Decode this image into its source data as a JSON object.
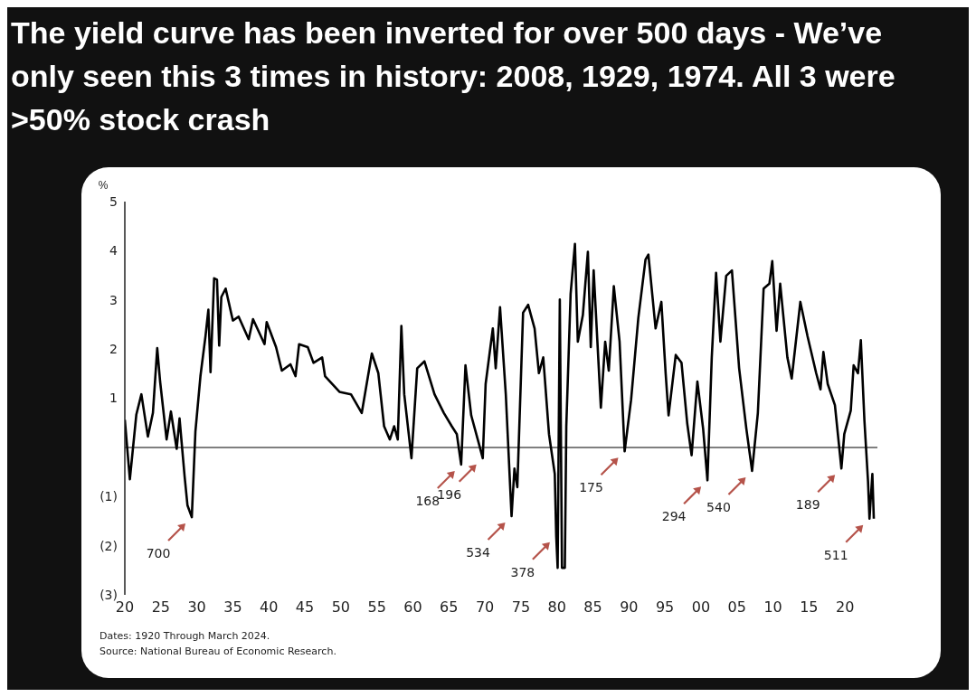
{
  "chart_data": {
    "type": "line",
    "title": "The yield curve has been inverted for over 500 days - We’ve only seen this 3 times in history: 2008, 1929, 1974. All 3 were >50% stock crash",
    "ylabel": "%",
    "xlim": [
      1920,
      2024.5
    ],
    "xticks": [
      {
        "value": 1920,
        "label": "20"
      },
      {
        "value": 1925,
        "label": "25"
      },
      {
        "value": 1930,
        "label": "30"
      },
      {
        "value": 1935,
        "label": "35"
      },
      {
        "value": 1940,
        "label": "40"
      },
      {
        "value": 1945,
        "label": "45"
      },
      {
        "value": 1950,
        "label": "50"
      },
      {
        "value": 1955,
        "label": "55"
      },
      {
        "value": 1960,
        "label": "60"
      },
      {
        "value": 1965,
        "label": "65"
      },
      {
        "value": 1970,
        "label": "70"
      },
      {
        "value": 1975,
        "label": "75"
      },
      {
        "value": 1980,
        "label": "80"
      },
      {
        "value": 1985,
        "label": "85"
      },
      {
        "value": 1990,
        "label": "90"
      },
      {
        "value": 1995,
        "label": "95"
      },
      {
        "value": 2000,
        "label": "00"
      },
      {
        "value": 2005,
        "label": "05"
      },
      {
        "value": 2010,
        "label": "10"
      },
      {
        "value": 2015,
        "label": "15"
      },
      {
        "value": 2020,
        "label": "20"
      }
    ],
    "ylim": [
      -3,
      5
    ],
    "yticks": [
      {
        "value": -3,
        "label": "(3)"
      },
      {
        "value": -2,
        "label": "(2)"
      },
      {
        "value": -1,
        "label": "(1)"
      },
      1,
      2,
      3,
      4,
      5
    ],
    "grid": false,
    "legend": false,
    "marker": "none",
    "line_style": "solid",
    "ref_lines": [
      {
        "axis": "y",
        "value": 0,
        "color": "#555555"
      }
    ],
    "series": [
      {
        "color": "#000000",
        "x": [
          1920.0,
          1920.7,
          1921.6,
          1922.3,
          1923.2,
          1923.9,
          1924.5,
          1924.9,
          1925.8,
          1926.4,
          1927.2,
          1927.6,
          1928.3,
          1928.7,
          1929.3,
          1929.8,
          1930.5,
          1931.2,
          1931.6,
          1931.9,
          1932.4,
          1932.8,
          1933.1,
          1933.4,
          1934.0,
          1935.0,
          1935.8,
          1937.2,
          1937.8,
          1939.4,
          1939.7,
          1941.0,
          1941.8,
          1943.0,
          1943.7,
          1944.2,
          1945.4,
          1946.2,
          1947.4,
          1947.8,
          1949.8,
          1951.4,
          1952.9,
          1954.3,
          1955.2,
          1956.0,
          1956.8,
          1957.4,
          1957.9,
          1958.4,
          1958.8,
          1959.8,
          1960.6,
          1961.6,
          1963.0,
          1964.3,
          1965.4,
          1966.1,
          1966.7,
          1967.3,
          1968.1,
          1969.1,
          1969.7,
          1970.1,
          1971.1,
          1971.5,
          1972.1,
          1972.9,
          1973.7,
          1974.1,
          1974.5,
          1975.3,
          1976.0,
          1976.9,
          1977.5,
          1978.1,
          1978.9,
          1979.7,
          1979.9,
          1980.1,
          1980.4,
          1980.7,
          1981.1,
          1981.3,
          1981.9,
          1982.5,
          1982.9,
          1983.6,
          1984.3,
          1984.7,
          1985.1,
          1986.1,
          1986.7,
          1987.2,
          1987.9,
          1988.7,
          1989.4,
          1990.3,
          1991.3,
          1992.3,
          1992.7,
          1993.7,
          1994.5,
          1995.1,
          1995.5,
          1996.5,
          1997.3,
          1998.1,
          1998.7,
          1999.5,
          2000.3,
          2000.9,
          2001.5,
          2002.1,
          2002.7,
          2003.5,
          2004.3,
          2005.3,
          2006.3,
          2007.1,
          2007.9,
          2008.7,
          2009.5,
          2009.9,
          2010.5,
          2011.0,
          2012.0,
          2012.6,
          2013.8,
          2014.8,
          2016.0,
          2016.6,
          2017.0,
          2017.6,
          2018.6,
          2019.5,
          2019.9,
          2020.8,
          2021.2,
          2021.8,
          2022.2,
          2022.7,
          2023.2,
          2023.4,
          2023.8,
          2024.0
        ],
        "values": [
          0.56,
          -0.65,
          0.67,
          1.08,
          0.22,
          0.7,
          2.02,
          1.34,
          0.16,
          0.73,
          -0.03,
          0.59,
          -0.59,
          -1.18,
          -1.42,
          0.32,
          1.45,
          2.26,
          2.8,
          1.53,
          3.44,
          3.41,
          2.07,
          3.06,
          3.23,
          2.58,
          2.66,
          2.2,
          2.61,
          2.1,
          2.55,
          2.04,
          1.56,
          1.69,
          1.45,
          2.1,
          2.04,
          1.72,
          1.83,
          1.45,
          1.13,
          1.08,
          0.7,
          1.91,
          1.51,
          0.43,
          0.16,
          0.43,
          0.16,
          2.47,
          1.08,
          -0.22,
          1.61,
          1.75,
          1.08,
          0.7,
          0.43,
          0.27,
          -0.35,
          1.67,
          0.65,
          0.11,
          -0.22,
          1.29,
          2.42,
          1.61,
          2.85,
          1.08,
          -1.4,
          -0.43,
          -0.81,
          2.74,
          2.9,
          2.42,
          1.51,
          1.83,
          0.27,
          -0.54,
          -1.8,
          -2.45,
          3.01,
          -2.45,
          -2.45,
          0.43,
          3.12,
          4.14,
          2.15,
          2.69,
          3.98,
          2.04,
          3.6,
          0.81,
          2.15,
          1.56,
          3.28,
          2.15,
          -0.08,
          0.97,
          2.63,
          3.82,
          3.92,
          2.42,
          2.96,
          1.5,
          0.65,
          1.88,
          1.72,
          0.48,
          -0.16,
          1.34,
          0.38,
          -0.67,
          1.83,
          3.55,
          2.15,
          3.49,
          3.6,
          1.61,
          0.38,
          -0.48,
          0.7,
          3.23,
          3.33,
          3.79,
          2.37,
          3.33,
          1.83,
          1.4,
          2.96,
          2.26,
          1.51,
          1.18,
          1.94,
          1.29,
          0.86,
          -0.43,
          0.27,
          0.75,
          1.67,
          1.51,
          2.18,
          0.54,
          -0.7,
          -1.45,
          -0.54,
          -1.45
        ]
      }
    ],
    "annotations": [
      {
        "text": "700",
        "x": 1929.3,
        "y": -1.42
      },
      {
        "text": "168",
        "x": 1966.7,
        "y": -0.35
      },
      {
        "text": "196",
        "x": 1969.7,
        "y": -0.22
      },
      {
        "text": "534",
        "x": 1973.7,
        "y": -1.4
      },
      {
        "text": "378",
        "x": 1979.9,
        "y": -1.8
      },
      {
        "text": "175",
        "x": 1989.4,
        "y": -0.08
      },
      {
        "text": "294",
        "x": 2000.9,
        "y": -0.67
      },
      {
        "text": "540",
        "x": 2007.1,
        "y": -0.48
      },
      {
        "text": "189",
        "x": 2019.5,
        "y": -0.43
      },
      {
        "text": "511",
        "x": 2023.4,
        "y": -1.45
      },
      "Dates: 1920 Through March 2024.",
      "Source: National Bureau of Economic Research."
    ]
  }
}
